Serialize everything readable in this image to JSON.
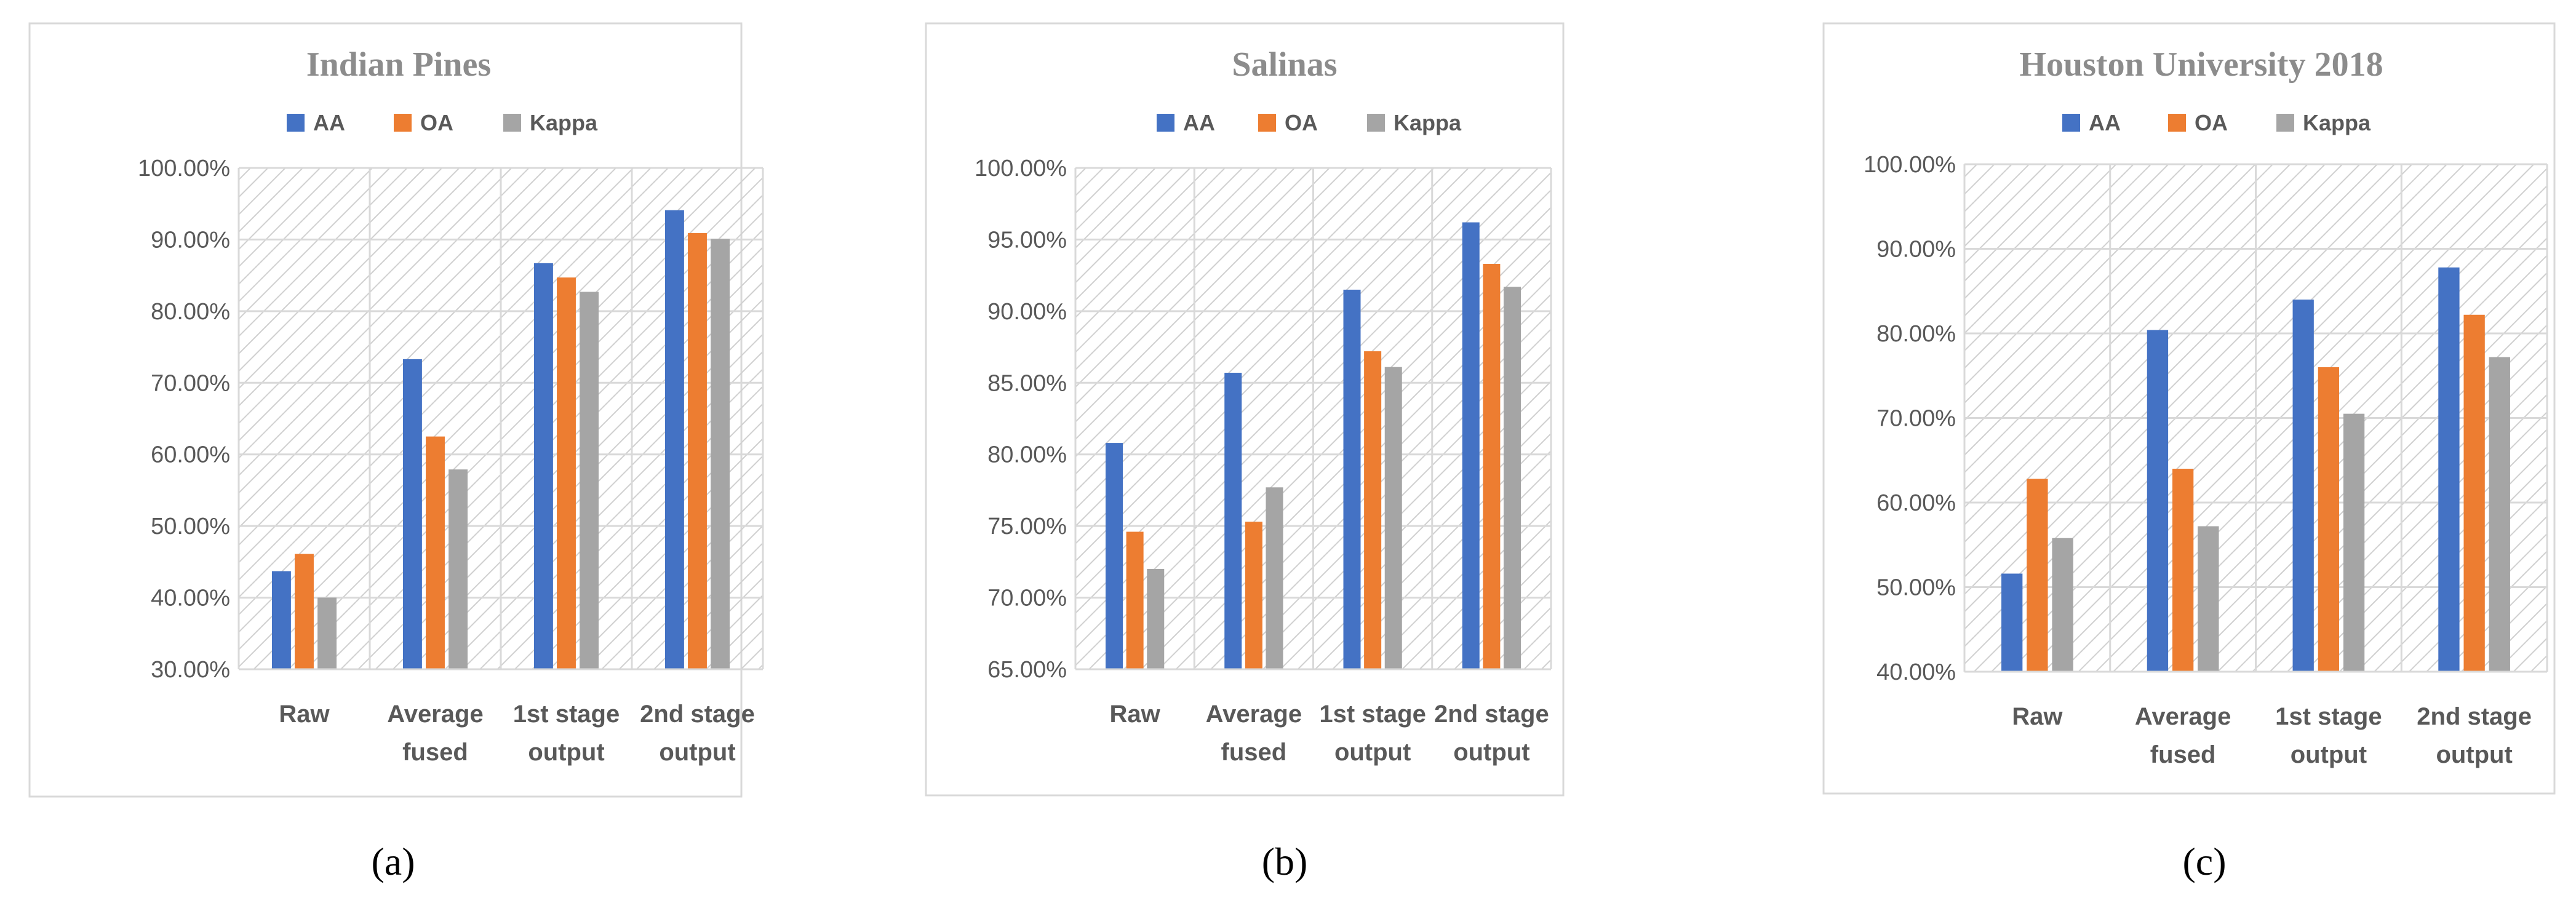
{
  "colors": {
    "AA": "#4472c4",
    "OA": "#ed7d31",
    "Kappa": "#a5a5a5",
    "frame": "#d9d9d9",
    "hatch": "#d0d0d0"
  },
  "chart_data": [
    {
      "type": "bar",
      "title": "Indian Pines",
      "caption": "(a)",
      "categories": [
        [
          "Raw"
        ],
        [
          "Average",
          "fused"
        ],
        [
          "1st stage",
          "output"
        ],
        [
          "2nd stage",
          "output"
        ]
      ],
      "series": [
        {
          "name": "AA",
          "values": [
            43.7,
            73.3,
            86.7,
            94.1
          ]
        },
        {
          "name": "OA",
          "values": [
            46.1,
            62.5,
            84.7,
            90.9
          ]
        },
        {
          "name": "Kappa",
          "values": [
            40.0,
            57.9,
            82.7,
            90.1
          ]
        }
      ],
      "ylim": [
        30,
        100
      ],
      "yticks": [
        30,
        40,
        50,
        60,
        70,
        80,
        90,
        100
      ],
      "ytick_labels": [
        "30.00%",
        "40.00%",
        "50.00%",
        "60.00%",
        "70.00%",
        "80.00%",
        "90.00%",
        "100.00%"
      ],
      "xlabel": "",
      "ylabel": "",
      "legend": "top"
    },
    {
      "type": "bar",
      "title": "Salinas",
      "caption": "(b)",
      "categories": [
        [
          "Raw"
        ],
        [
          "Average",
          "fused"
        ],
        [
          "1st stage",
          "output"
        ],
        [
          "2nd stage",
          "output"
        ]
      ],
      "series": [
        {
          "name": "AA",
          "values": [
            80.8,
            85.7,
            91.5,
            96.2
          ]
        },
        {
          "name": "OA",
          "values": [
            74.6,
            75.3,
            87.2,
            93.3
          ]
        },
        {
          "name": "Kappa",
          "values": [
            72.0,
            77.7,
            86.1,
            91.7
          ]
        }
      ],
      "ylim": [
        65,
        100
      ],
      "yticks": [
        65,
        70,
        75,
        80,
        85,
        90,
        95,
        100
      ],
      "ytick_labels": [
        "65.00%",
        "70.00%",
        "75.00%",
        "80.00%",
        "85.00%",
        "90.00%",
        "95.00%",
        "100.00%"
      ],
      "xlabel": "",
      "ylabel": "",
      "legend": "top"
    },
    {
      "type": "bar",
      "title": "Houston University 2018",
      "caption": "(c)",
      "categories": [
        [
          "Raw"
        ],
        [
          "Average",
          "fused"
        ],
        [
          "1st stage",
          "output"
        ],
        [
          "2nd stage",
          "output"
        ]
      ],
      "series": [
        {
          "name": "AA",
          "values": [
            51.6,
            80.4,
            84.0,
            87.8
          ]
        },
        {
          "name": "OA",
          "values": [
            62.8,
            64.0,
            76.0,
            82.2
          ]
        },
        {
          "name": "Kappa",
          "values": [
            55.8,
            57.2,
            70.5,
            77.2
          ]
        }
      ],
      "ylim": [
        40,
        100
      ],
      "yticks": [
        40,
        50,
        60,
        70,
        80,
        90,
        100
      ],
      "ytick_labels": [
        "40.00%",
        "50.00%",
        "60.00%",
        "70.00%",
        "80.00%",
        "90.00%",
        "100.00%"
      ],
      "xlabel": "",
      "ylabel": "",
      "legend": "top"
    }
  ]
}
